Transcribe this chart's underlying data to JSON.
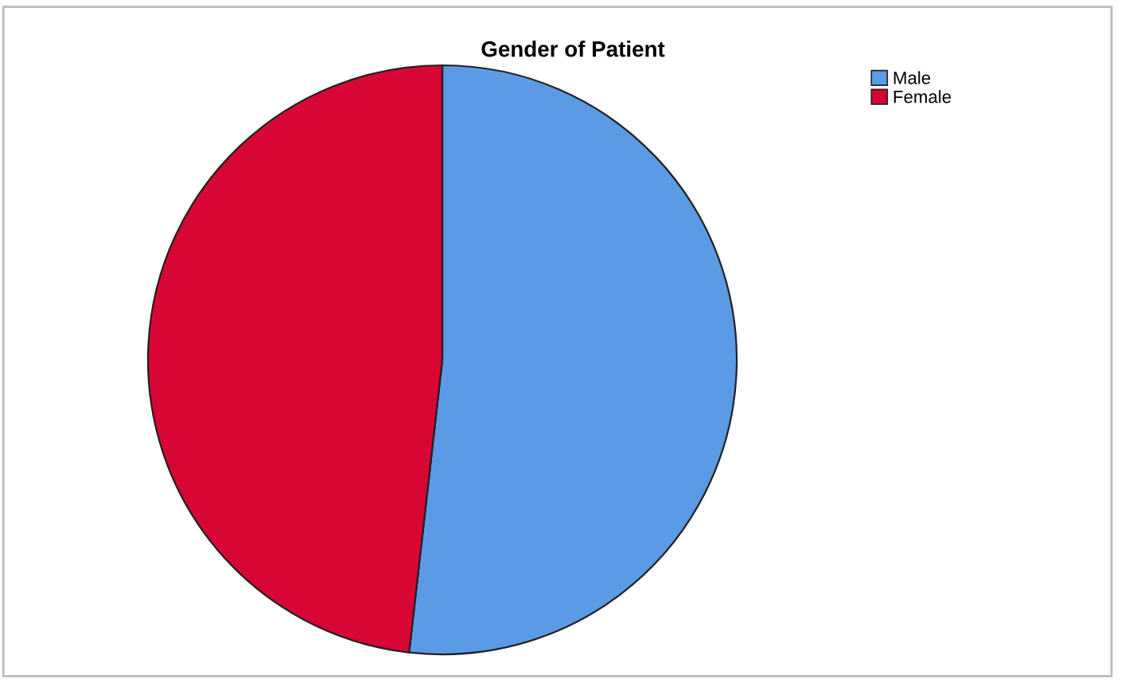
{
  "chart_data": {
    "type": "pie",
    "title": "Gender of Patient",
    "categories": [
      "Male",
      "Female"
    ],
    "values": [
      51.8,
      48.2
    ],
    "colors": [
      "#5b9be6",
      "#d70634"
    ],
    "legend": "top right"
  }
}
